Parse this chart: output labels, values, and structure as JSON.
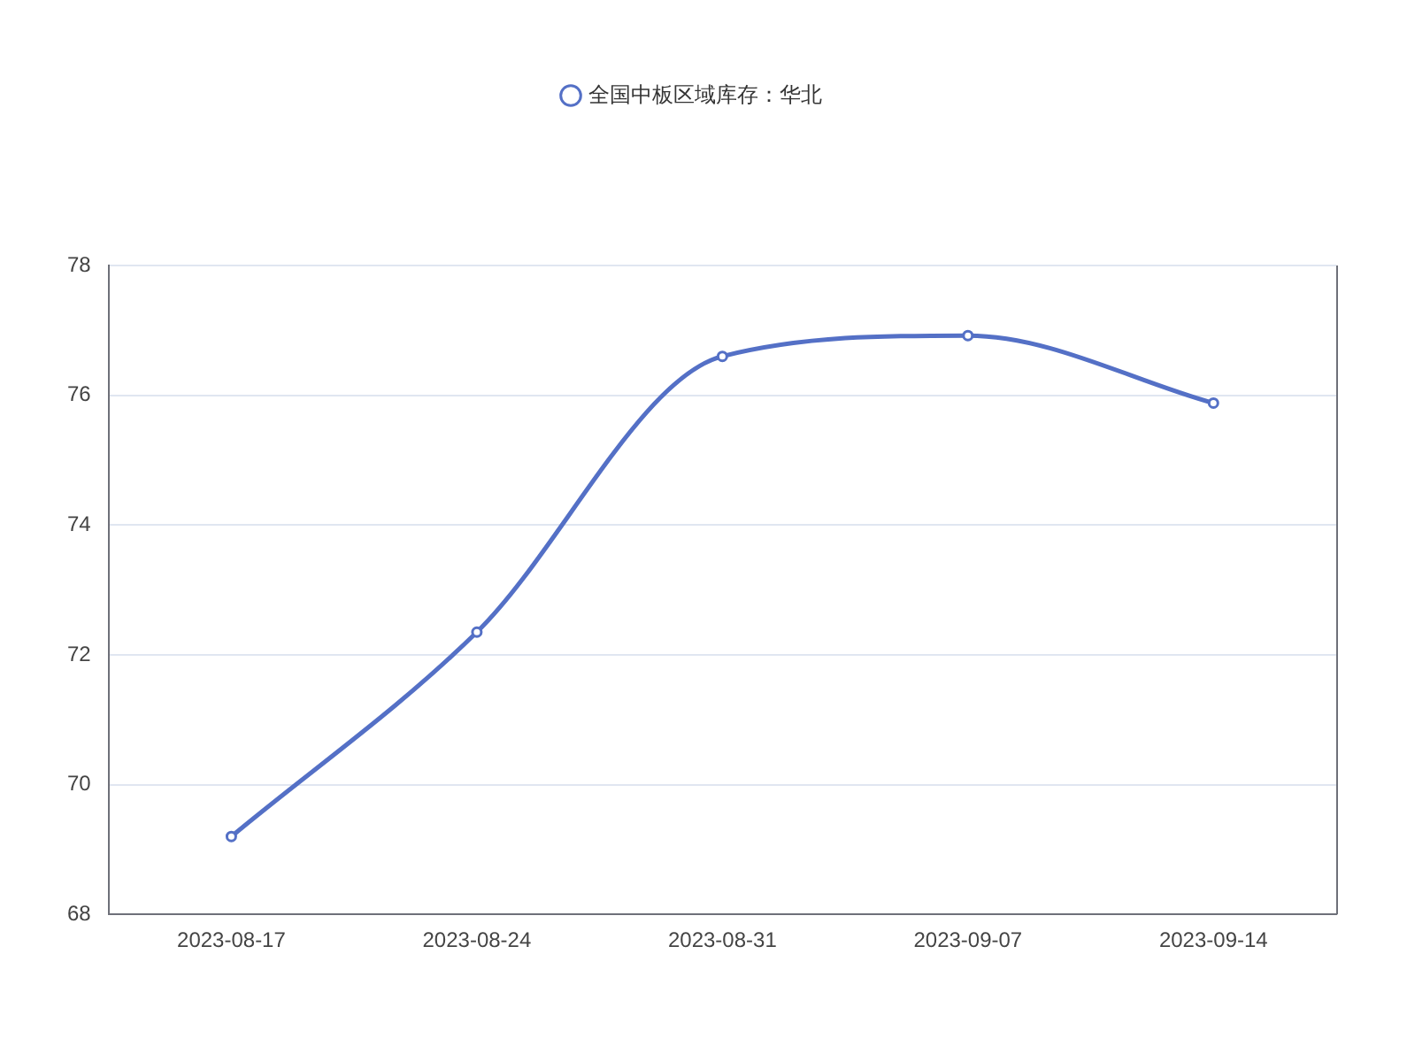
{
  "chart_data": {
    "type": "line",
    "categories": [
      "2023-08-17",
      "2023-08-24",
      "2023-08-31",
      "2023-09-07",
      "2023-09-14"
    ],
    "series": [
      {
        "name": "全国中板区域库存：华北",
        "color": "#5470c6",
        "values": [
          69.2,
          72.35,
          76.6,
          76.92,
          75.88
        ]
      }
    ],
    "ylim": [
      68,
      78
    ],
    "yticks": [
      68,
      70,
      72,
      74,
      76,
      78
    ],
    "grid": "y",
    "legend": "top",
    "marker": "circle",
    "line_style": "solid"
  }
}
